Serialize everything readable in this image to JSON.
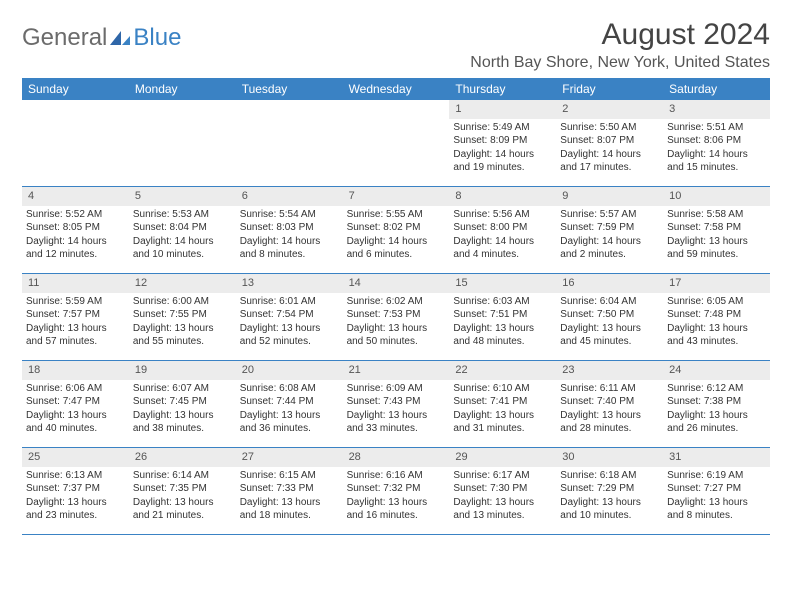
{
  "logo": {
    "part1": "General",
    "part2": "Blue"
  },
  "title": "August 2024",
  "location": "North Bay Shore, New York, United States",
  "colors": {
    "header_bg": "#3a82c4",
    "header_text": "#ffffff",
    "daynum_bg": "#ececec",
    "border": "#3a82c4",
    "text": "#333333",
    "logo_gray": "#6b6b6b",
    "logo_blue": "#3a82c4",
    "page_bg": "#ffffff"
  },
  "typography": {
    "title_fontsize": 30,
    "location_fontsize": 16,
    "weekday_fontsize": 12,
    "daynum_fontsize": 11,
    "body_fontsize": 10
  },
  "weekdays": [
    "Sunday",
    "Monday",
    "Tuesday",
    "Wednesday",
    "Thursday",
    "Friday",
    "Saturday"
  ],
  "weeks": [
    [
      {
        "n": "",
        "sr": "",
        "ss": "",
        "dl": ""
      },
      {
        "n": "",
        "sr": "",
        "ss": "",
        "dl": ""
      },
      {
        "n": "",
        "sr": "",
        "ss": "",
        "dl": ""
      },
      {
        "n": "",
        "sr": "",
        "ss": "",
        "dl": ""
      },
      {
        "n": "1",
        "sr": "Sunrise: 5:49 AM",
        "ss": "Sunset: 8:09 PM",
        "dl": "Daylight: 14 hours and 19 minutes."
      },
      {
        "n": "2",
        "sr": "Sunrise: 5:50 AM",
        "ss": "Sunset: 8:07 PM",
        "dl": "Daylight: 14 hours and 17 minutes."
      },
      {
        "n": "3",
        "sr": "Sunrise: 5:51 AM",
        "ss": "Sunset: 8:06 PM",
        "dl": "Daylight: 14 hours and 15 minutes."
      }
    ],
    [
      {
        "n": "4",
        "sr": "Sunrise: 5:52 AM",
        "ss": "Sunset: 8:05 PM",
        "dl": "Daylight: 14 hours and 12 minutes."
      },
      {
        "n": "5",
        "sr": "Sunrise: 5:53 AM",
        "ss": "Sunset: 8:04 PM",
        "dl": "Daylight: 14 hours and 10 minutes."
      },
      {
        "n": "6",
        "sr": "Sunrise: 5:54 AM",
        "ss": "Sunset: 8:03 PM",
        "dl": "Daylight: 14 hours and 8 minutes."
      },
      {
        "n": "7",
        "sr": "Sunrise: 5:55 AM",
        "ss": "Sunset: 8:02 PM",
        "dl": "Daylight: 14 hours and 6 minutes."
      },
      {
        "n": "8",
        "sr": "Sunrise: 5:56 AM",
        "ss": "Sunset: 8:00 PM",
        "dl": "Daylight: 14 hours and 4 minutes."
      },
      {
        "n": "9",
        "sr": "Sunrise: 5:57 AM",
        "ss": "Sunset: 7:59 PM",
        "dl": "Daylight: 14 hours and 2 minutes."
      },
      {
        "n": "10",
        "sr": "Sunrise: 5:58 AM",
        "ss": "Sunset: 7:58 PM",
        "dl": "Daylight: 13 hours and 59 minutes."
      }
    ],
    [
      {
        "n": "11",
        "sr": "Sunrise: 5:59 AM",
        "ss": "Sunset: 7:57 PM",
        "dl": "Daylight: 13 hours and 57 minutes."
      },
      {
        "n": "12",
        "sr": "Sunrise: 6:00 AM",
        "ss": "Sunset: 7:55 PM",
        "dl": "Daylight: 13 hours and 55 minutes."
      },
      {
        "n": "13",
        "sr": "Sunrise: 6:01 AM",
        "ss": "Sunset: 7:54 PM",
        "dl": "Daylight: 13 hours and 52 minutes."
      },
      {
        "n": "14",
        "sr": "Sunrise: 6:02 AM",
        "ss": "Sunset: 7:53 PM",
        "dl": "Daylight: 13 hours and 50 minutes."
      },
      {
        "n": "15",
        "sr": "Sunrise: 6:03 AM",
        "ss": "Sunset: 7:51 PM",
        "dl": "Daylight: 13 hours and 48 minutes."
      },
      {
        "n": "16",
        "sr": "Sunrise: 6:04 AM",
        "ss": "Sunset: 7:50 PM",
        "dl": "Daylight: 13 hours and 45 minutes."
      },
      {
        "n": "17",
        "sr": "Sunrise: 6:05 AM",
        "ss": "Sunset: 7:48 PM",
        "dl": "Daylight: 13 hours and 43 minutes."
      }
    ],
    [
      {
        "n": "18",
        "sr": "Sunrise: 6:06 AM",
        "ss": "Sunset: 7:47 PM",
        "dl": "Daylight: 13 hours and 40 minutes."
      },
      {
        "n": "19",
        "sr": "Sunrise: 6:07 AM",
        "ss": "Sunset: 7:45 PM",
        "dl": "Daylight: 13 hours and 38 minutes."
      },
      {
        "n": "20",
        "sr": "Sunrise: 6:08 AM",
        "ss": "Sunset: 7:44 PM",
        "dl": "Daylight: 13 hours and 36 minutes."
      },
      {
        "n": "21",
        "sr": "Sunrise: 6:09 AM",
        "ss": "Sunset: 7:43 PM",
        "dl": "Daylight: 13 hours and 33 minutes."
      },
      {
        "n": "22",
        "sr": "Sunrise: 6:10 AM",
        "ss": "Sunset: 7:41 PM",
        "dl": "Daylight: 13 hours and 31 minutes."
      },
      {
        "n": "23",
        "sr": "Sunrise: 6:11 AM",
        "ss": "Sunset: 7:40 PM",
        "dl": "Daylight: 13 hours and 28 minutes."
      },
      {
        "n": "24",
        "sr": "Sunrise: 6:12 AM",
        "ss": "Sunset: 7:38 PM",
        "dl": "Daylight: 13 hours and 26 minutes."
      }
    ],
    [
      {
        "n": "25",
        "sr": "Sunrise: 6:13 AM",
        "ss": "Sunset: 7:37 PM",
        "dl": "Daylight: 13 hours and 23 minutes."
      },
      {
        "n": "26",
        "sr": "Sunrise: 6:14 AM",
        "ss": "Sunset: 7:35 PM",
        "dl": "Daylight: 13 hours and 21 minutes."
      },
      {
        "n": "27",
        "sr": "Sunrise: 6:15 AM",
        "ss": "Sunset: 7:33 PM",
        "dl": "Daylight: 13 hours and 18 minutes."
      },
      {
        "n": "28",
        "sr": "Sunrise: 6:16 AM",
        "ss": "Sunset: 7:32 PM",
        "dl": "Daylight: 13 hours and 16 minutes."
      },
      {
        "n": "29",
        "sr": "Sunrise: 6:17 AM",
        "ss": "Sunset: 7:30 PM",
        "dl": "Daylight: 13 hours and 13 minutes."
      },
      {
        "n": "30",
        "sr": "Sunrise: 6:18 AM",
        "ss": "Sunset: 7:29 PM",
        "dl": "Daylight: 13 hours and 10 minutes."
      },
      {
        "n": "31",
        "sr": "Sunrise: 6:19 AM",
        "ss": "Sunset: 7:27 PM",
        "dl": "Daylight: 13 hours and 8 minutes."
      }
    ]
  ]
}
